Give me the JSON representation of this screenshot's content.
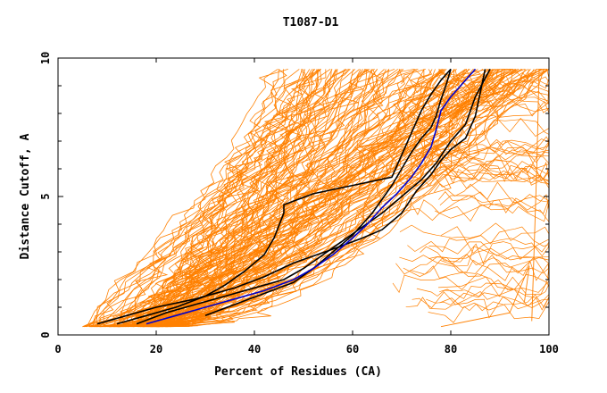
{
  "chart_data": {
    "type": "line",
    "title": "T1087-D1",
    "xlabel": "Percent of Residues (CA)",
    "ylabel": "Distance Cutoff, A",
    "xlim": [
      0,
      100
    ],
    "ylim": [
      0,
      10
    ],
    "xticks": [
      0,
      20,
      40,
      60,
      80,
      100
    ],
    "yticks": [
      0,
      5,
      10
    ],
    "grid": false,
    "colors": {
      "background_models": "#ff8000",
      "highlight_black": "#000000",
      "highlight_blue": "#0000cc"
    },
    "highlight_series": [
      {
        "color": "#000000",
        "x": [
          16,
          22,
          28,
          34,
          40,
          46,
          50,
          54,
          58,
          62,
          66,
          70,
          74,
          77,
          80,
          83,
          85,
          88
        ],
        "y": [
          0.4,
          0.8,
          1.1,
          1.4,
          1.7,
          2.0,
          2.4,
          2.9,
          3.4,
          3.9,
          4.4,
          5.0,
          5.6,
          6.2,
          7.0,
          7.6,
          8.6,
          9.6
        ]
      },
      {
        "color": "#000000",
        "x": [
          8,
          14,
          20,
          28,
          36,
          42,
          48,
          56,
          62,
          66,
          70,
          73,
          76,
          78,
          80,
          83,
          85,
          87
        ],
        "y": [
          0.4,
          0.7,
          1.0,
          1.3,
          1.7,
          2.1,
          2.6,
          3.1,
          3.5,
          3.8,
          4.4,
          5.2,
          5.8,
          6.3,
          6.7,
          7.1,
          7.9,
          9.6
        ]
      },
      {
        "color": "#000000",
        "x": [
          12,
          18,
          24,
          30,
          34,
          38,
          42,
          44,
          46,
          46,
          52,
          60,
          68,
          70,
          72,
          74,
          76,
          78,
          80
        ],
        "y": [
          0.4,
          0.7,
          1.0,
          1.4,
          1.8,
          2.3,
          2.9,
          3.5,
          4.4,
          4.7,
          5.1,
          5.4,
          5.7,
          6.5,
          7.3,
          8.1,
          8.7,
          9.2,
          9.6
        ]
      },
      {
        "color": "#000000",
        "x": [
          30,
          36,
          42,
          48,
          52,
          56,
          60,
          62,
          64,
          66,
          68,
          70,
          72,
          74,
          76,
          77,
          78,
          79,
          80
        ],
        "y": [
          0.7,
          1.1,
          1.5,
          1.9,
          2.4,
          3.0,
          3.6,
          4.0,
          4.4,
          4.9,
          5.4,
          6.0,
          6.6,
          7.1,
          7.5,
          7.9,
          8.5,
          9.0,
          9.6
        ]
      },
      {
        "color": "#0000cc",
        "x": [
          18,
          24,
          30,
          36,
          42,
          48,
          52,
          56,
          60,
          63,
          66,
          69,
          72,
          74,
          76,
          77,
          78,
          80,
          82,
          85
        ],
        "y": [
          0.4,
          0.7,
          1.0,
          1.3,
          1.6,
          2.0,
          2.4,
          2.9,
          3.5,
          4.0,
          4.6,
          5.1,
          5.7,
          6.2,
          6.8,
          7.4,
          8.1,
          8.6,
          9.0,
          9.6
        ]
      }
    ]
  }
}
